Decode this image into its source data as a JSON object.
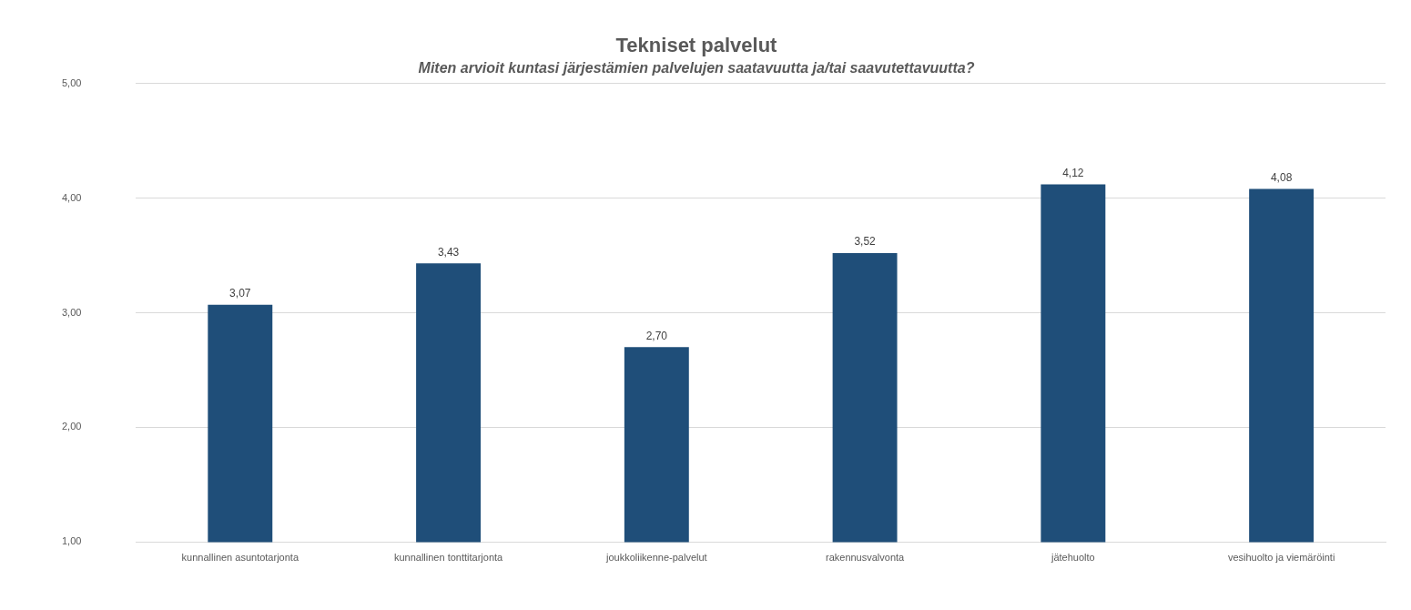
{
  "chart_data": {
    "type": "bar",
    "title": "Tekniset palvelut",
    "subtitle": "Miten arvioit kuntasi järjestämien palvelujen saatavuutta ja/tai saavutettavuutta?",
    "categories": [
      "kunnallinen asuntotarjonta",
      "kunnallinen tonttitarjonta",
      "joukkoliikenne-palvelut",
      "rakennusvalvonta",
      "jätehuolto",
      "vesihuolto ja viemäröinti"
    ],
    "values": [
      3.07,
      3.43,
      2.7,
      3.52,
      4.12,
      4.08
    ],
    "value_labels": [
      "3,07",
      "3,43",
      "2,70",
      "3,52",
      "4,12",
      "4,08"
    ],
    "color": "#1f4e79",
    "ylim": [
      1,
      5
    ],
    "yticks": [
      {
        "value": 1,
        "label": "1,00"
      },
      {
        "value": 2,
        "label": "2,00"
      },
      {
        "value": 3,
        "label": "3,00"
      },
      {
        "value": 4,
        "label": "4,00"
      },
      {
        "value": 5,
        "label": "5,00"
      }
    ],
    "grid": "y",
    "legend": false
  }
}
